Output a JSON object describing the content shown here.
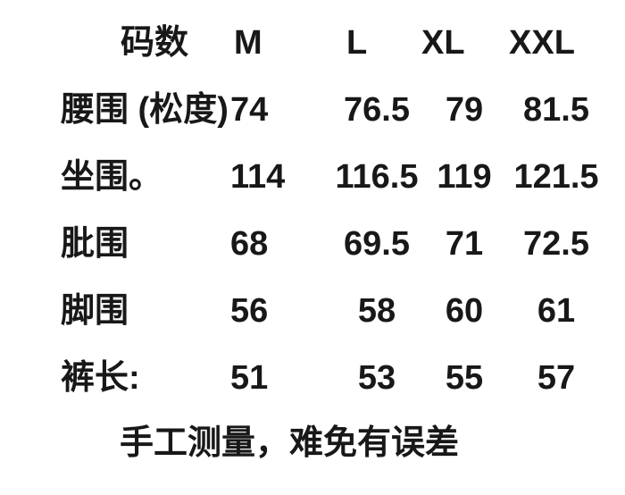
{
  "page": {
    "background_color": "#ffffff",
    "text_color": "#181818"
  },
  "chart_data": {
    "type": "table",
    "title": "",
    "columns": [
      "码数",
      "M",
      "L",
      "XL",
      "XXL"
    ],
    "rows": [
      {
        "label": "腰围 (松度)",
        "values": [
          "74",
          "76.5",
          "79",
          "81.5"
        ]
      },
      {
        "label": "坐围。",
        "values": [
          "114",
          "116.5",
          "119",
          "121.5"
        ]
      },
      {
        "label": "肶围",
        "values": [
          "68",
          "69.5",
          "71",
          "72.5"
        ]
      },
      {
        "label": "脚围",
        "values": [
          "56",
          "58",
          "60",
          "61"
        ]
      },
      {
        "label": "裤长:",
        "values": [
          "51",
          "53",
          "55",
          "57"
        ]
      }
    ],
    "note": "手工测量，难免有误差",
    "layout_hints": {
      "grid": "off",
      "borders": "none",
      "style": "plain black bold text on white"
    }
  }
}
